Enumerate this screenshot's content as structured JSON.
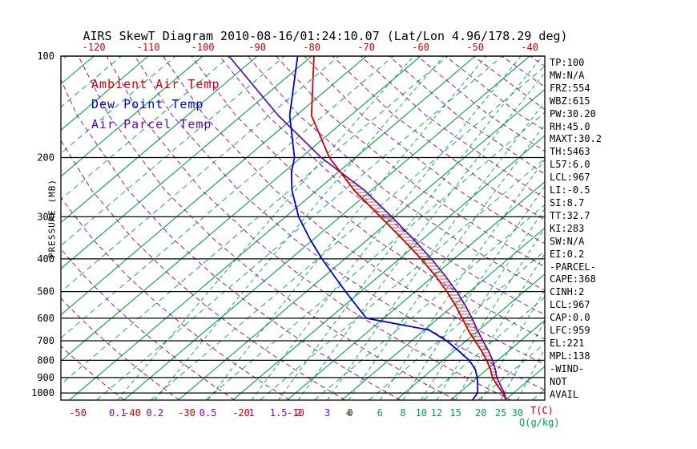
{
  "title": "AIRS SkewT Diagram 2010-08-16/01:24:10.07 (Lat/Lon 4.96/178.29 deg)",
  "legend": [
    {
      "label": "Ambient Air Temp",
      "color": "#CC0000"
    },
    {
      "label": "Dew Point Temp",
      "color": "#0000CC"
    },
    {
      "label": "Air Parcel Temp",
      "color": "#5A0AA8"
    }
  ],
  "axes": {
    "pressure_label": "PRESSURE (MB)",
    "pressure_ticks_mb": [
      100,
      200,
      300,
      400,
      500,
      600,
      700,
      800,
      900,
      1000
    ],
    "top_temp_ticks_c": [
      -120,
      -110,
      -100,
      -90,
      -80,
      -70,
      -60,
      -50,
      -40
    ],
    "bottom_temp_ticks_c": [
      -50,
      -40,
      -30,
      -20,
      -10,
      0
    ],
    "temp_axis_label": "T(C)",
    "mixing_ratio_ticks_gkg": [
      0.1,
      0.2,
      0.5,
      1,
      1.5,
      2,
      3,
      4,
      6,
      8,
      10,
      12,
      15,
      20,
      25,
      30
    ],
    "mixing_ratio_label": "Q(g/kg)"
  },
  "indices_panel": [
    "TP:100",
    "MW:N/A",
    "FRZ:554",
    "WBZ:615",
    "PW:30.20",
    "RH:45.0",
    "MAXT:30.2",
    "TH:5463",
    "L57:6.0",
    "LCL:967",
    "LI:-0.5",
    "SI:8.7",
    "TT:32.7",
    "KI:283",
    "SW:N/A",
    "EI:0.2",
    "-PARCEL-",
    "CAPE:368",
    "CINH:2",
    "LCL:967",
    "CAP:0.0",
    "LFC:959",
    "EL:221",
    "MPL:138",
    "-WIND-",
    "NOT",
    "AVAIL"
  ],
  "colors": {
    "background": "#FFFFFF",
    "isotherm_green": "#00A14B",
    "mixing_ratio_green": "#00A14B",
    "dry_adiabat_violet": "#7A00CC",
    "ambient_red": "#CC0000",
    "dew_point_blue": "#0000CC",
    "parcel_violet": "#5A0AA8",
    "axis_black": "#000000",
    "hatch_red": "#B03030",
    "tick_label_red": "#CC0000",
    "mixing_tick_violet": "#7A00CC",
    "mixing_tick_green": "#00A14B"
  },
  "chart_data": {
    "type": "line",
    "title": "AIRS SkewT Diagram 2010-08-16/01:24:10.07 (Lat/Lon 4.96/178.29 deg)",
    "xlabel": "T(C)",
    "ylabel": "PRESSURE (MB)",
    "y_scale": "log-pressure",
    "skew_deg": 45,
    "grid": true,
    "legend_position": "top-left",
    "pressure_range_mb": [
      100,
      1050
    ],
    "top_axis_temp_range_c": [
      -120,
      -40
    ],
    "isotherm_interval_c": 5,
    "dry_adiabat_interval_k": 10,
    "pressure_levels_mb": [
      1050,
      1000,
      950,
      900,
      850,
      800,
      750,
      700,
      650,
      600,
      550,
      500,
      450,
      400,
      350,
      300,
      250,
      221,
      200,
      150,
      100
    ],
    "series": [
      {
        "name": "Ambient Air Temp",
        "color": "#CC0000",
        "temps_c": [
          30.2,
          28.0,
          25.4,
          22.8,
          20.6,
          18.0,
          15.0,
          11.6,
          8.0,
          4.4,
          0.4,
          -4.2,
          -9.6,
          -16.0,
          -23.6,
          -32.6,
          -43.2,
          -49.6,
          -54.8,
          -67.2,
          -79.6
        ]
      },
      {
        "name": "Dew Point Temp",
        "color": "#0000CC",
        "temps_c": [
          24.0,
          23.4,
          21.8,
          20.0,
          17.8,
          14.8,
          10.8,
          6.4,
          0.8,
          -13.2,
          -17.8,
          -22.8,
          -28.2,
          -34.2,
          -40.6,
          -47.6,
          -54.6,
          -58.6,
          -61.2,
          -71.2,
          -82.6
        ]
      },
      {
        "name": "Air Parcel Temp",
        "color": "#5A0AA8",
        "temps_c": [
          30.2,
          28.3,
          26.0,
          23.6,
          21.5,
          19.1,
          16.3,
          13.1,
          9.7,
          6.2,
          2.2,
          -2.4,
          -7.8,
          -14.1,
          -21.6,
          -30.5,
          -41.3,
          -49.6,
          -56.3,
          -73.3,
          -95.2
        ]
      }
    ]
  }
}
